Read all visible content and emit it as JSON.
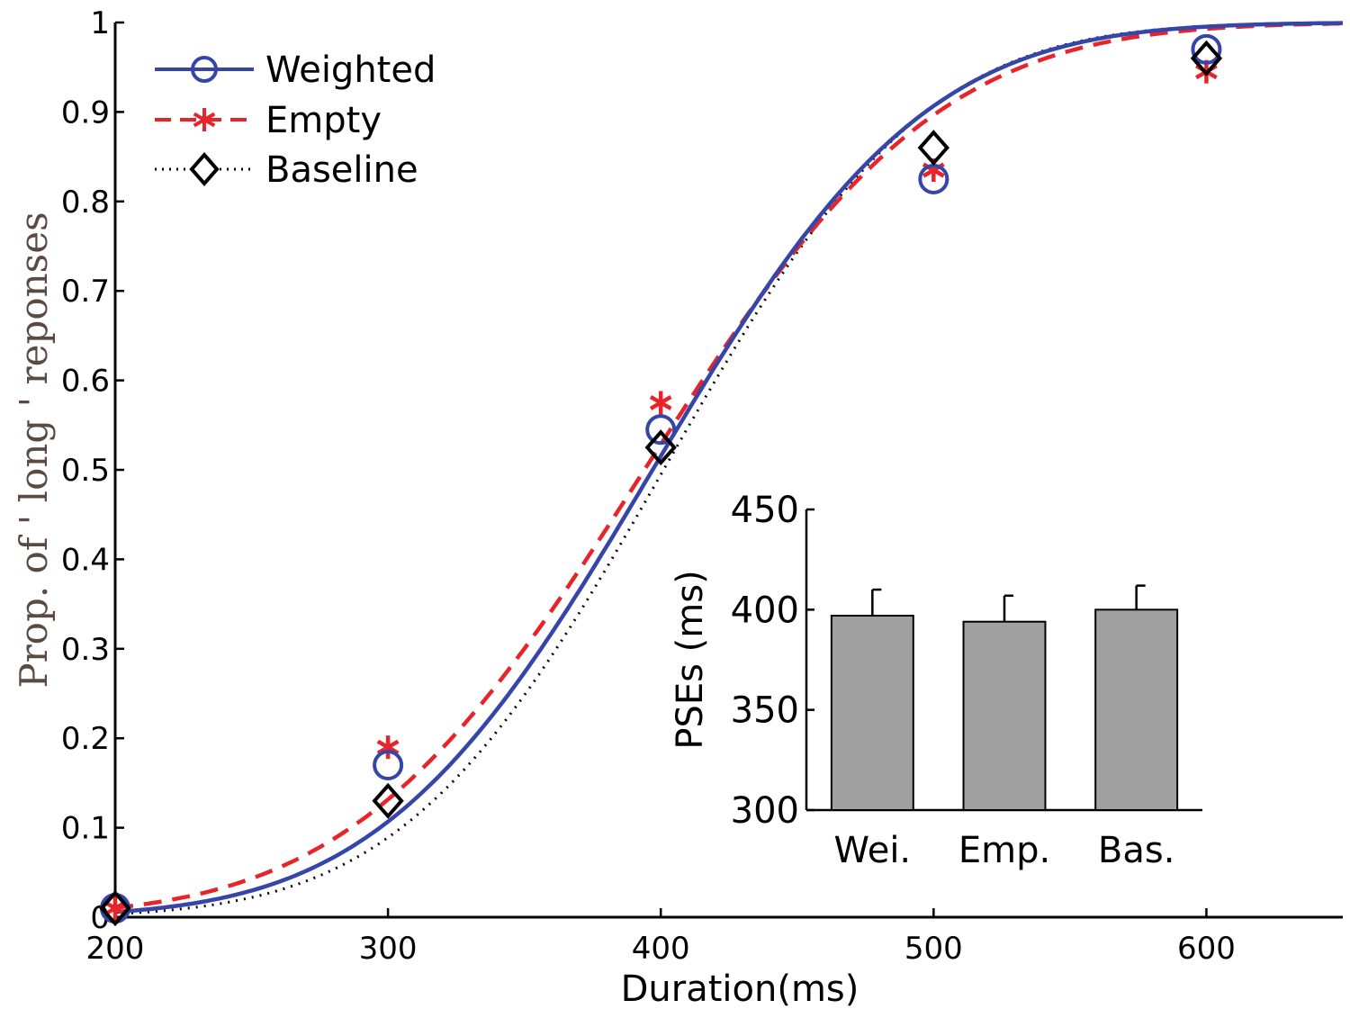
{
  "chart_data": [
    {
      "type": "line",
      "xlabel": "Duration(ms)",
      "ylabel": "Prop. of ' long ' reponses",
      "xlim": [
        200,
        650
      ],
      "ylim": [
        0,
        1
      ],
      "xticks": [
        200,
        300,
        400,
        500,
        600
      ],
      "yticks": [
        0,
        0.1,
        0.2,
        0.3,
        0.4,
        0.5,
        0.6,
        0.7,
        0.8,
        0.9,
        1
      ],
      "ytick_labels": [
        "0",
        "0.1",
        "0.2",
        "0.3",
        "0.4",
        "0.5",
        "0.6",
        "0.7",
        "0.8",
        "0.9",
        "1"
      ],
      "legend_position": "top-left",
      "x": [
        200,
        300,
        400,
        500,
        600
      ],
      "series": [
        {
          "name": "Weighted",
          "color": "#3545a8",
          "line_style": "solid",
          "marker": "circle",
          "values": [
            0.01,
            0.17,
            0.545,
            0.825,
            0.97
          ],
          "fit": {
            "mu": 397,
            "sigma": 78
          }
        },
        {
          "name": "Empty",
          "color": "#e8242b",
          "line_style": "dashed",
          "marker": "asterisk",
          "values": [
            0.01,
            0.19,
            0.575,
            0.835,
            0.945
          ],
          "fit": {
            "mu": 394,
            "sigma": 84
          }
        },
        {
          "name": "Baseline",
          "color": "#000000",
          "line_style": "dotted",
          "marker": "diamond",
          "values": [
            0.01,
            0.13,
            0.525,
            0.86,
            0.96
          ],
          "fit": {
            "mu": 401,
            "sigma": 75
          }
        }
      ]
    },
    {
      "type": "bar",
      "ylabel": "PSEs (ms)",
      "ylim": [
        300,
        450
      ],
      "yticks": [
        300,
        350,
        400,
        450
      ],
      "categories": [
        "Wei.",
        "Emp.",
        "Bas."
      ],
      "values": [
        397,
        394,
        400
      ],
      "errors": [
        13,
        13,
        12
      ],
      "bar_color": "#a0a0a0"
    }
  ]
}
